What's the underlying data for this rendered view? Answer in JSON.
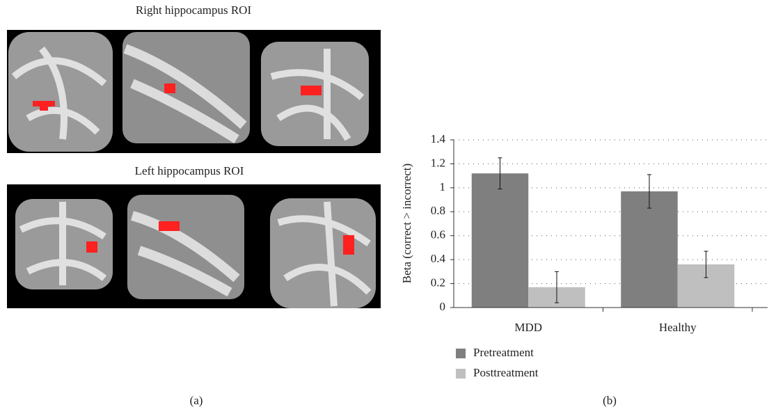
{
  "panel_a": {
    "top_title": "Right hippocampus ROI",
    "bottom_title": "Left hippocampus ROI",
    "label": "(a)"
  },
  "panel_b": {
    "label": "(b)"
  },
  "chart_data": {
    "type": "bar",
    "ylabel": "Beta (correct > incorrect)",
    "categories": [
      "MDD",
      "Healthy"
    ],
    "series": [
      {
        "name": "Pretreatment",
        "color": "#7f7f7f",
        "values": [
          1.12,
          0.97
        ],
        "errors": [
          0.13,
          0.14
        ]
      },
      {
        "name": "Posttreatment",
        "color": "#bfbfbf",
        "values": [
          0.17,
          0.36
        ],
        "errors": [
          0.13,
          0.11
        ]
      }
    ],
    "ylim": [
      0,
      1.4
    ],
    "yticks": [
      0,
      0.2,
      0.4,
      0.6,
      0.8,
      1,
      1.2,
      1.4
    ],
    "grid": true,
    "legend": "bottom-left"
  }
}
